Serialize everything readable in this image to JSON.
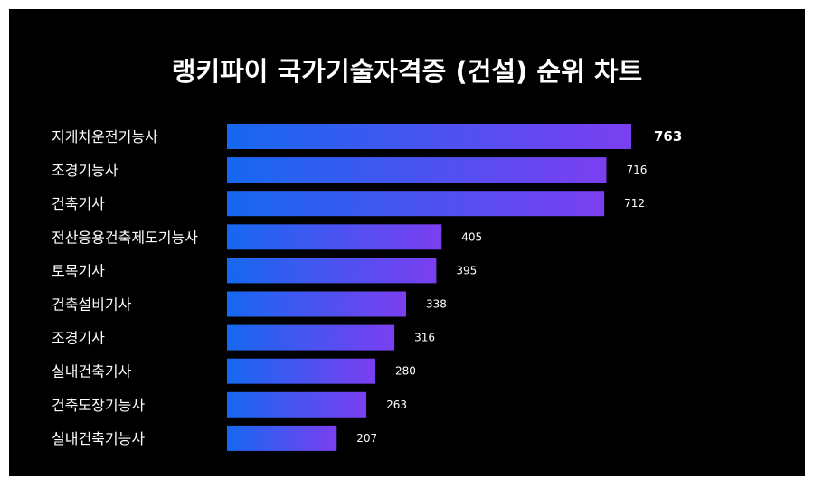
{
  "chart_data": {
    "type": "bar",
    "orientation": "horizontal",
    "title": "랭키파이 국가기술자격증 (건설) 순위 차트",
    "categories": [
      "지게차운전기능사",
      "조경기능사",
      "건축기사",
      "전산응용건축제도기능사",
      "토목기사",
      "건축설비기사",
      "조경기사",
      "실내건축기사",
      "건축도장기능사",
      "실내건축기능사"
    ],
    "values": [
      763,
      716,
      712,
      405,
      395,
      338,
      316,
      280,
      263,
      207
    ],
    "xlabel": "",
    "ylabel": "",
    "grid": false,
    "colors": {
      "background": "#000000",
      "gradient_start": "#1668f0",
      "gradient_end": "#7b3ff0",
      "text": "#ffffff"
    }
  }
}
